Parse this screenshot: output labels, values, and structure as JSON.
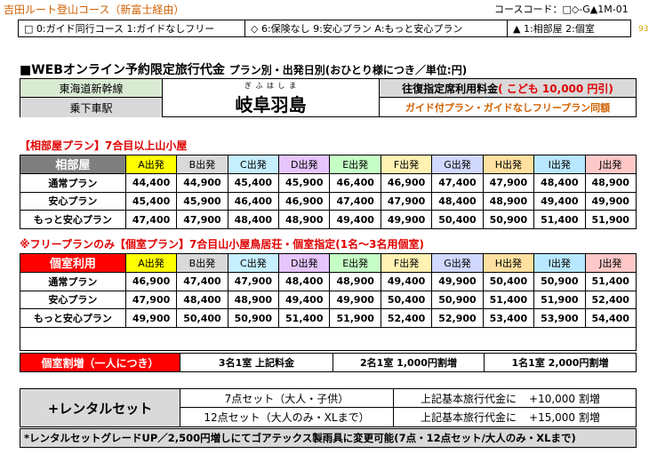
{
  "header": {
    "course_title": "吉田ルート登山コース（新富士経由）",
    "course_code": "コースコード：□◇-G▲1M-01",
    "page_number": "93"
  },
  "options": {
    "guide": "□ 0:ガイド同行コース  1:ガイドなしフリー",
    "insurance": "◇ 6:保険なし 9:安心プラン A:もっと安心プラン",
    "room": "▲ 1:相部屋 2:個室"
  },
  "section": {
    "title": "■WEBオンライン予約限定旅行代金",
    "subtitle": "プラン別・出発日別(おひとり様につき／単位:円)"
  },
  "departure": {
    "line_label": "東海道新幹線",
    "station_label": "乗下車駅",
    "station_ruby": "ぎ ふ は し ま",
    "station_name": "岐阜羽島",
    "fare_label": "往復指定席利用料金",
    "child_fare": "( こども  10,000  円引)",
    "plan_note": "ガイド付プラン・ガイドなしフリープラン同額"
  },
  "shared_plan": {
    "title": "【相部屋プラン】7合目以上山小屋",
    "header_label": "相部屋",
    "columns": [
      "A出発",
      "B出発",
      "C出発",
      "D出発",
      "E出発",
      "F出発",
      "G出発",
      "H出発",
      "I出発",
      "J出発"
    ],
    "rows": [
      {
        "label": "通常プラン",
        "prices": [
          "44,400",
          "44,900",
          "45,400",
          "45,900",
          "46,400",
          "46,900",
          "47,400",
          "47,900",
          "48,400",
          "48,900"
        ]
      },
      {
        "label": "安心プラン",
        "prices": [
          "45,400",
          "45,900",
          "46,400",
          "46,900",
          "47,400",
          "47,900",
          "48,400",
          "48,900",
          "49,400",
          "49,900"
        ]
      },
      {
        "label": "もっと安心プラン",
        "prices": [
          "47,400",
          "47,900",
          "48,400",
          "48,900",
          "49,400",
          "49,900",
          "50,400",
          "50,900",
          "51,400",
          "51,900"
        ]
      }
    ]
  },
  "private_plan": {
    "title": "※フリープランのみ【個室プラン】7合目山小屋鳥居荘・個室指定(1名～3名用個室)",
    "header_label": "個室利用",
    "columns": [
      "A出発",
      "B出発",
      "C出発",
      "D出発",
      "E出発",
      "F出発",
      "G出発",
      "H出発",
      "I出発",
      "J出発"
    ],
    "rows": [
      {
        "label": "通常プラン",
        "prices": [
          "46,900",
          "47,400",
          "47,900",
          "48,400",
          "48,900",
          "49,400",
          "49,900",
          "50,400",
          "50,900",
          "51,400"
        ]
      },
      {
        "label": "安心プラン",
        "prices": [
          "47,900",
          "48,400",
          "48,900",
          "49,400",
          "49,900",
          "50,400",
          "50,900",
          "51,400",
          "51,900",
          "52,400"
        ]
      },
      {
        "label": "もっと安心プラン",
        "prices": [
          "49,900",
          "50,400",
          "50,900",
          "51,400",
          "51,900",
          "52,400",
          "52,900",
          "53,400",
          "53,900",
          "54,400"
        ]
      }
    ]
  },
  "surcharge": {
    "label": "個室割増（一人につき）",
    "three": "3名1室 上記料金",
    "two": "2名1室 1,000円割増",
    "one": "1名1室 2,000円割増"
  },
  "rental": {
    "label": "+レンタルセット",
    "set7_label": "7点セット（大人・子供）",
    "set7_price_label": "上記基本旅行代金に",
    "set7_price": "+10,000  割増",
    "set12_label": "12点セット（大人のみ・XLまで）",
    "set12_price_label": "上記基本旅行代金に",
    "set12_price": "+15,000  割増"
  },
  "note": "*レンタルセットグレードUP／2,500円増しにてゴアテックス製雨具に変更可能(7点・12点セット/大人のみ・XLまで)"
}
